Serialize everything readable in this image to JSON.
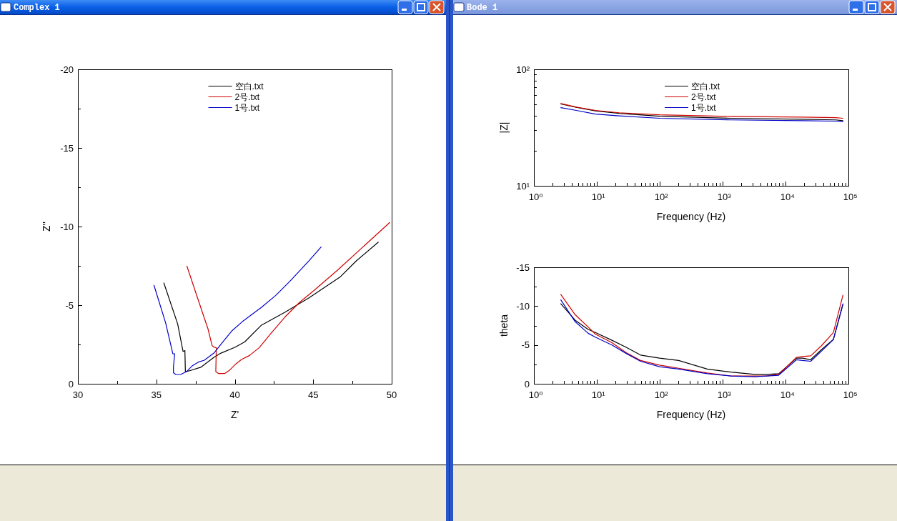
{
  "chart_data": [
    {
      "type": "line",
      "title": "Complex 1",
      "xlabel": "Z'",
      "ylabel": "Z''",
      "xlim": [
        30,
        50
      ],
      "ylim": [
        0,
        -20
      ],
      "xticks": [
        30,
        {
          "value": 32.5,
          "label": null
        },
        35,
        {
          "value": 37.5,
          "label": null
        },
        40,
        {
          "value": 42.5,
          "label": null
        },
        45,
        {
          "value": 47.5,
          "label": null
        },
        50
      ],
      "yticks": [
        0,
        {
          "value": -2.5,
          "label": null
        },
        -5,
        {
          "value": -7.5,
          "label": null
        },
        -10,
        {
          "value": -12.5,
          "label": null
        },
        -15,
        {
          "value": -17.5,
          "label": null
        },
        -20
      ],
      "legend": "top",
      "series": [
        {
          "name": "空白.txt",
          "color": "#000000",
          "x": [
            35.48,
            36.36,
            36.7,
            36.82,
            36.85,
            37.08,
            37.83,
            38.67,
            39.12,
            40.03,
            40.64,
            41.7,
            43.21,
            44.73,
            46.7,
            47.76,
            49.14
          ],
          "values": [
            -6.41,
            -3.8,
            -2.06,
            -2.11,
            -0.77,
            -0.82,
            -1.05,
            -1.68,
            -1.95,
            -2.33,
            -2.67,
            -3.73,
            -4.56,
            -5.47,
            -6.78,
            -7.83,
            -9.0
          ]
        },
        {
          "name": "2号.txt",
          "color": "#d00000",
          "x": [
            36.95,
            37.98,
            38.29,
            38.55,
            38.67,
            38.82,
            38.79,
            38.97,
            39.35,
            39.65,
            40.03,
            40.41,
            40.94,
            41.55,
            42.3,
            43.21,
            44.12,
            45.03,
            46.55,
            49.88
          ],
          "values": [
            -7.48,
            -4.41,
            -3.5,
            -2.44,
            -2.33,
            -2.29,
            -0.77,
            -0.65,
            -0.65,
            -0.85,
            -1.23,
            -1.53,
            -1.8,
            -2.29,
            -3.2,
            -4.26,
            -5.17,
            -5.92,
            -7.23,
            -10.26
          ]
        },
        {
          "name": "1号.txt",
          "color": "#0000c8",
          "x": [
            34.85,
            35.59,
            36.05,
            36.17,
            36.09,
            36.09,
            36.24,
            36.55,
            36.92,
            37.3,
            37.68,
            38.06,
            38.67,
            39.12,
            39.8,
            40.48,
            41.7,
            42.61,
            43.52,
            44.73,
            45.5
          ],
          "values": [
            -6.26,
            -3.88,
            -1.91,
            -1.91,
            -1.08,
            -0.7,
            -0.59,
            -0.59,
            -0.77,
            -1.15,
            -1.38,
            -1.5,
            -1.95,
            -2.52,
            -3.35,
            -3.95,
            -4.86,
            -5.62,
            -6.53,
            -7.82,
            -8.7
          ]
        }
      ]
    },
    {
      "type": "line",
      "title": "Bode 1",
      "xlabel": "Frequency (Hz)",
      "ylabel": "|Z|",
      "log": "xy",
      "xlim": [
        1,
        100000
      ],
      "ylim": [
        10,
        100
      ],
      "xticks": [
        {
          "value": 1,
          "label": "10⁰"
        },
        {
          "value": 2,
          "label": null
        },
        {
          "value": 3,
          "label": null
        },
        {
          "value": 4,
          "label": null
        },
        {
          "value": 5,
          "label": null
        },
        {
          "value": 6,
          "label": null
        },
        {
          "value": 7,
          "label": null
        },
        {
          "value": 8,
          "label": null
        },
        {
          "value": 9,
          "label": null
        },
        {
          "value": 10,
          "label": "10¹"
        },
        {
          "value": 20,
          "label": null
        },
        {
          "value": 30,
          "label": null
        },
        {
          "value": 40,
          "label": null
        },
        {
          "value": 50,
          "label": null
        },
        {
          "value": 60,
          "label": null
        },
        {
          "value": 70,
          "label": null
        },
        {
          "value": 80,
          "label": null
        },
        {
          "value": 90,
          "label": null
        },
        {
          "value": 100,
          "label": "10²"
        },
        {
          "value": 200,
          "label": null
        },
        {
          "value": 300,
          "label": null
        },
        {
          "value": 400,
          "label": null
        },
        {
          "value": 500,
          "label": null
        },
        {
          "value": 600,
          "label": null
        },
        {
          "value": 700,
          "label": null
        },
        {
          "value": 800,
          "label": null
        },
        {
          "value": 900,
          "label": null
        },
        {
          "value": 1000,
          "label": "10³"
        },
        {
          "value": 2000,
          "label": null
        },
        {
          "value": 3000,
          "label": null
        },
        {
          "value": 4000,
          "label": null
        },
        {
          "value": 5000,
          "label": null
        },
        {
          "value": 6000,
          "label": null
        },
        {
          "value": 7000,
          "label": null
        },
        {
          "value": 8000,
          "label": null
        },
        {
          "value": 9000,
          "label": null
        },
        {
          "value": 10000,
          "label": "10⁴"
        },
        {
          "value": 20000,
          "label": null
        },
        {
          "value": 30000,
          "label": null
        },
        {
          "value": 40000,
          "label": null
        },
        {
          "value": 50000,
          "label": null
        },
        {
          "value": 60000,
          "label": null
        },
        {
          "value": 70000,
          "label": null
        },
        {
          "value": 80000,
          "label": null
        },
        {
          "value": 90000,
          "label": null
        },
        {
          "value": 100000,
          "label": "10⁵"
        }
      ],
      "yticks": [
        {
          "value": 10,
          "label": "10¹"
        },
        {
          "value": 20,
          "label": null
        },
        {
          "value": 30,
          "label": null
        },
        {
          "value": 40,
          "label": null
        },
        {
          "value": 50,
          "label": null
        },
        {
          "value": 60,
          "label": null
        },
        {
          "value": 70,
          "label": null
        },
        {
          "value": 80,
          "label": null
        },
        {
          "value": 90,
          "label": null
        },
        {
          "value": 100,
          "label": "10²"
        }
      ],
      "legend": "top",
      "series": [
        {
          "name": "空白.txt",
          "color": "#000000",
          "x": [
            2.68,
            4.72,
            9.48,
            22.6,
            99.6,
            1361,
            18600,
            63000,
            81800
          ],
          "values": [
            50.4,
            47.2,
            44.0,
            41.9,
            39.6,
            38.0,
            37.3,
            36.8,
            36.2
          ]
        },
        {
          "name": "2号.txt",
          "color": "#d00000",
          "x": [
            2.68,
            4.72,
            9.48,
            22.6,
            99.6,
            1361,
            18600,
            63000,
            81800
          ],
          "values": [
            50.8,
            47.4,
            44.4,
            42.4,
            40.7,
            39.4,
            38.9,
            38.5,
            38.0
          ]
        },
        {
          "name": "1号.txt",
          "color": "#0000c8",
          "x": [
            2.68,
            4.72,
            9.48,
            22.6,
            99.6,
            1361,
            18600,
            63000,
            81800
          ],
          "values": [
            46.9,
            44.4,
            41.3,
            39.8,
            38.0,
            36.8,
            36.2,
            35.9,
            35.6
          ]
        }
      ]
    },
    {
      "type": "line",
      "xlabel": "Frequency (Hz)",
      "ylabel": "theta",
      "log": "x",
      "xlim": [
        1,
        100000
      ],
      "ylim": [
        0,
        -15
      ],
      "xticks": [
        {
          "value": 1,
          "label": "10⁰"
        },
        {
          "value": 2,
          "label": null
        },
        {
          "value": 3,
          "label": null
        },
        {
          "value": 4,
          "label": null
        },
        {
          "value": 5,
          "label": null
        },
        {
          "value": 6,
          "label": null
        },
        {
          "value": 7,
          "label": null
        },
        {
          "value": 8,
          "label": null
        },
        {
          "value": 9,
          "label": null
        },
        {
          "value": 10,
          "label": "10¹"
        },
        {
          "value": 20,
          "label": null
        },
        {
          "value": 30,
          "label": null
        },
        {
          "value": 40,
          "label": null
        },
        {
          "value": 50,
          "label": null
        },
        {
          "value": 60,
          "label": null
        },
        {
          "value": 70,
          "label": null
        },
        {
          "value": 80,
          "label": null
        },
        {
          "value": 90,
          "label": null
        },
        {
          "value": 100,
          "label": "10²"
        },
        {
          "value": 200,
          "label": null
        },
        {
          "value": 300,
          "label": null
        },
        {
          "value": 400,
          "label": null
        },
        {
          "value": 500,
          "label": null
        },
        {
          "value": 600,
          "label": null
        },
        {
          "value": 700,
          "label": null
        },
        {
          "value": 800,
          "label": null
        },
        {
          "value": 900,
          "label": null
        },
        {
          "value": 1000,
          "label": "10³"
        },
        {
          "value": 2000,
          "label": null
        },
        {
          "value": 3000,
          "label": null
        },
        {
          "value": 4000,
          "label": null
        },
        {
          "value": 5000,
          "label": null
        },
        {
          "value": 6000,
          "label": null
        },
        {
          "value": 7000,
          "label": null
        },
        {
          "value": 8000,
          "label": null
        },
        {
          "value": 9000,
          "label": null
        },
        {
          "value": 10000,
          "label": "10⁴"
        },
        {
          "value": 20000,
          "label": null
        },
        {
          "value": 30000,
          "label": null
        },
        {
          "value": 40000,
          "label": null
        },
        {
          "value": 50000,
          "label": null
        },
        {
          "value": 60000,
          "label": null
        },
        {
          "value": 70000,
          "label": null
        },
        {
          "value": 80000,
          "label": null
        },
        {
          "value": 90000,
          "label": null
        },
        {
          "value": 100000,
          "label": "10⁵"
        }
      ],
      "yticks": [
        0,
        {
          "value": -2.5,
          "label": null
        },
        -5,
        {
          "value": -7.5,
          "label": null
        },
        -10,
        {
          "value": -12.5,
          "label": null
        },
        -15
      ],
      "series": [
        {
          "color": "#000000",
          "x": [
            2.68,
            4.52,
            7.3,
            9.48,
            17.4,
            29.4,
            49.6,
            99.6,
            200,
            569,
            1361,
            3254,
            5010,
            7780,
            14960,
            18600,
            25200,
            37300,
            57700,
            81800
          ],
          "values": [
            -10.3,
            -8.2,
            -7.0,
            -6.6,
            -5.6,
            -4.7,
            -3.7,
            -3.3,
            -3.0,
            -1.9,
            -1.5,
            -1.2,
            -1.2,
            -1.3,
            -3.3,
            -3.3,
            -3.1,
            -4.4,
            -5.7,
            -10.2
          ]
        },
        {
          "color": "#d00000",
          "x": [
            2.68,
            4.52,
            7.3,
            9.48,
            17.4,
            29.4,
            49.6,
            99.6,
            200,
            569,
            1361,
            3254,
            5010,
            7780,
            14960,
            18600,
            25200,
            37300,
            57700,
            81800
          ],
          "values": [
            -11.5,
            -8.9,
            -7.3,
            -6.4,
            -5.3,
            -4.0,
            -3.0,
            -2.4,
            -2.0,
            -1.4,
            -1.0,
            -1.0,
            -1.0,
            -1.2,
            -3.4,
            -3.5,
            -3.6,
            -4.9,
            -6.6,
            -11.4
          ]
        },
        {
          "color": "#0000c8",
          "x": [
            2.68,
            4.52,
            7.3,
            9.48,
            17.4,
            29.4,
            49.6,
            99.6,
            200,
            569,
            1361,
            3254,
            5010,
            7780,
            14960,
            18600,
            25200,
            37300,
            57700,
            81800
          ],
          "values": [
            -10.8,
            -8.0,
            -6.5,
            -6.0,
            -5.0,
            -3.9,
            -2.9,
            -2.2,
            -1.9,
            -1.3,
            -1.0,
            -0.9,
            -1.0,
            -1.1,
            -3.1,
            -3.0,
            -2.9,
            -4.2,
            -5.7,
            -10.3
          ]
        }
      ]
    }
  ]
}
